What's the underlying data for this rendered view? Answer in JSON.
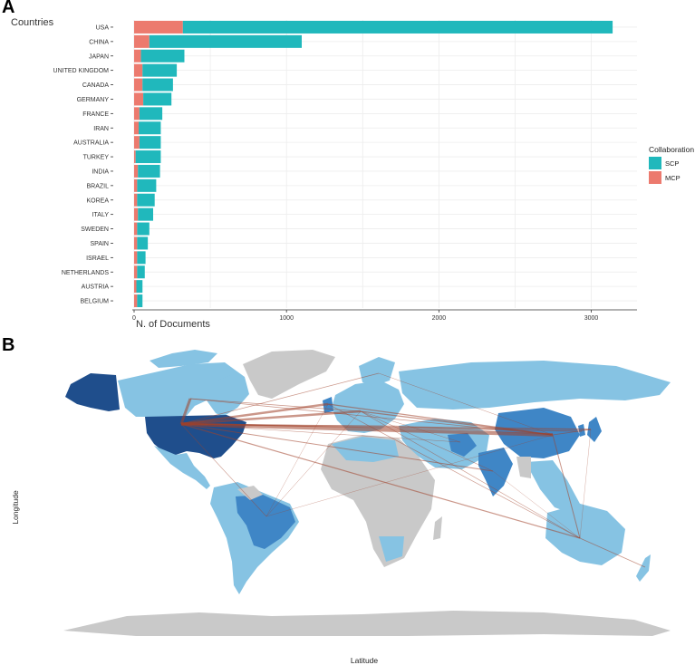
{
  "panels": {
    "a": "A",
    "b": "B"
  },
  "chart_data": [
    {
      "type": "bar",
      "orientation": "horizontal",
      "stacked": true,
      "categories": [
        "USA",
        "CHINA",
        "JAPAN",
        "UNITED KINGDOM",
        "CANADA",
        "GERMANY",
        "FRANCE",
        "IRAN",
        "AUSTRALIA",
        "TURKEY",
        "INDIA",
        "BRAZIL",
        "KOREA",
        "ITALY",
        "SWEDEN",
        "SPAIN",
        "ISRAEL",
        "NETHERLANDS",
        "AUSTRIA",
        "BELGIUM"
      ],
      "series": [
        {
          "name": "SCP",
          "values": [
            2820,
            1000,
            285,
            225,
            200,
            185,
            150,
            145,
            140,
            165,
            145,
            125,
            115,
            100,
            80,
            70,
            55,
            50,
            40,
            35
          ],
          "color": "#20b8bc"
        },
        {
          "name": "MCP",
          "values": [
            320,
            100,
            45,
            55,
            55,
            60,
            35,
            30,
            35,
            10,
            25,
            20,
            20,
            25,
            20,
            20,
            20,
            20,
            15,
            20
          ],
          "color": "#ec7a6e"
        }
      ],
      "xlabel": "N. of Documents",
      "ylabel": "Countries",
      "xticks": [
        0,
        1000,
        2000,
        3000
      ],
      "xlim": [
        0,
        3300
      ],
      "grid": true,
      "legend": {
        "title": "Collaboration",
        "placement": "right",
        "entries": [
          "SCP",
          "MCP"
        ]
      }
    },
    {
      "type": "map",
      "xlabel": "Latitude",
      "ylabel": "Longitude",
      "colors": {
        "high": "#1f4e8c",
        "mid": "#3f86c6",
        "low": "#86c3e3",
        "none": "#c9c9c9",
        "links": "#a0412a"
      },
      "country_intensity": [
        {
          "country": "USA",
          "level": "high"
        },
        {
          "country": "CHINA",
          "level": "mid"
        },
        {
          "country": "CANADA",
          "level": "low"
        },
        {
          "country": "BRAZIL",
          "level": "low"
        },
        {
          "country": "AUSTRALIA",
          "level": "low"
        },
        {
          "country": "GREENLAND",
          "level": "none"
        },
        {
          "country": "ANTARCTICA",
          "level": "none"
        }
      ]
    }
  ]
}
